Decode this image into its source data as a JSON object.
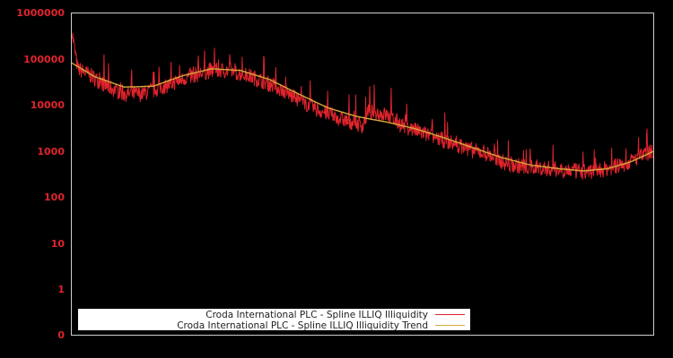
{
  "chart_data": {
    "type": "line",
    "title": "",
    "xlabel": "",
    "ylabel": "",
    "yscale": "log",
    "ylim": [
      0,
      1000000
    ],
    "y_ticks": [
      "1000000",
      "100000",
      "10000",
      "1000",
      "100",
      "10",
      "1",
      "0"
    ],
    "x_ticks": [],
    "grid": false,
    "legend_position": "lower center",
    "series": [
      {
        "name": "Croda International PLC - Spline ILLIQ Illiquidity",
        "color": "#e0242c",
        "approx_points_fraction_value": [
          [
            0.0,
            400000
          ],
          [
            0.01,
            60000
          ],
          [
            0.03,
            45000
          ],
          [
            0.06,
            25000
          ],
          [
            0.09,
            17000
          ],
          [
            0.12,
            17000
          ],
          [
            0.16,
            25000
          ],
          [
            0.2,
            40000
          ],
          [
            0.24,
            55000
          ],
          [
            0.27,
            55000
          ],
          [
            0.31,
            40000
          ],
          [
            0.35,
            25000
          ],
          [
            0.38,
            15000
          ],
          [
            0.42,
            8000
          ],
          [
            0.46,
            5000
          ],
          [
            0.5,
            3500
          ],
          [
            0.51,
            7000
          ],
          [
            0.54,
            6000
          ],
          [
            0.57,
            3500
          ],
          [
            0.61,
            2200
          ],
          [
            0.65,
            1500
          ],
          [
            0.69,
            1000
          ],
          [
            0.71,
            900
          ],
          [
            0.75,
            500
          ],
          [
            0.8,
            420
          ],
          [
            0.85,
            380
          ],
          [
            0.88,
            340
          ],
          [
            0.91,
            380
          ],
          [
            0.95,
            500
          ],
          [
            1.0,
            1000
          ]
        ]
      },
      {
        "name": "Croda International PLC - Spline ILLIQ Illiquidity Trend",
        "color": "#d4a93a",
        "approx_points_fraction_value": [
          [
            0.0,
            80000
          ],
          [
            0.04,
            40000
          ],
          [
            0.09,
            24000
          ],
          [
            0.14,
            25000
          ],
          [
            0.19,
            42000
          ],
          [
            0.24,
            60000
          ],
          [
            0.29,
            55000
          ],
          [
            0.34,
            35000
          ],
          [
            0.39,
            17000
          ],
          [
            0.44,
            8500
          ],
          [
            0.49,
            5500
          ],
          [
            0.54,
            4200
          ],
          [
            0.59,
            3000
          ],
          [
            0.64,
            1900
          ],
          [
            0.69,
            1150
          ],
          [
            0.74,
            700
          ],
          [
            0.79,
            480
          ],
          [
            0.84,
            400
          ],
          [
            0.88,
            360
          ],
          [
            0.92,
            400
          ],
          [
            0.96,
            560
          ],
          [
            1.0,
            950
          ]
        ]
      }
    ]
  },
  "legend": {
    "items": [
      {
        "label": "Croda International PLC - Spline ILLIQ Illiquidity",
        "color": "#e0242c"
      },
      {
        "label": "Croda International PLC - Spline ILLIQ Illiquidity Trend",
        "color": "#d4a93a"
      }
    ]
  },
  "axes": {
    "y_labels": [
      "1000000",
      "100000",
      "10000",
      "1000",
      "100",
      "10",
      "1",
      "0"
    ]
  }
}
